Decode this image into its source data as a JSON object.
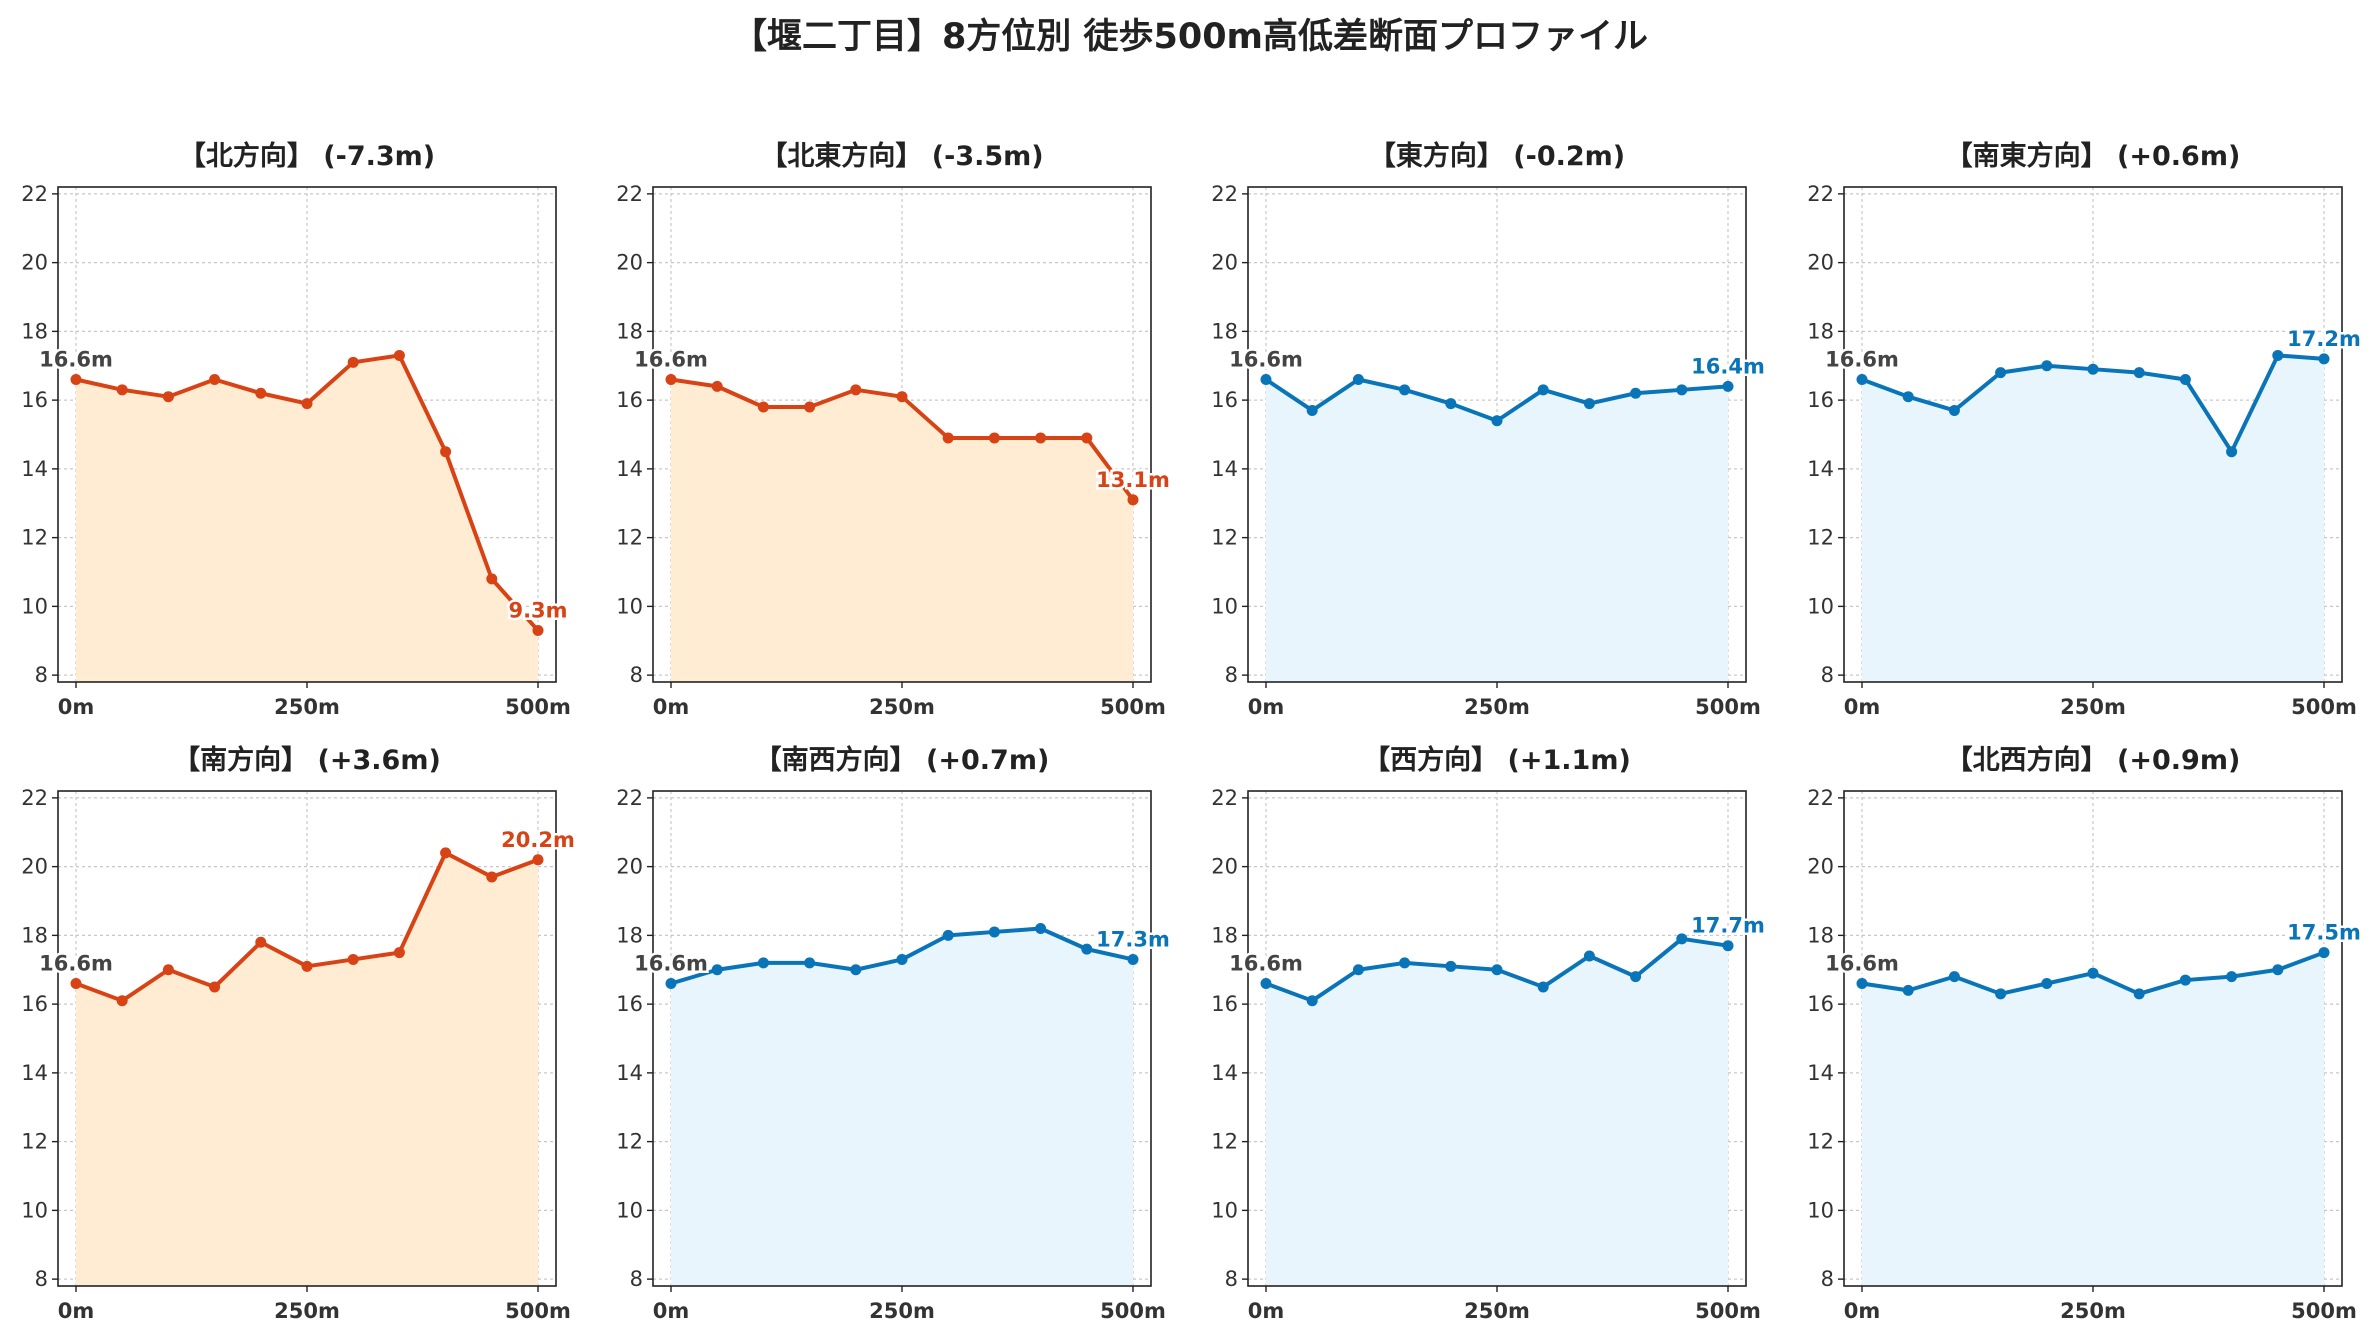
{
  "title": "【堰二丁目】8方位別 徒歩500m高低差断面プロファイル",
  "colors": {
    "down_line": "#d84315",
    "down_fill": "#ffecd2",
    "up_line": "#0a74b9",
    "up_fill": "#e8f5fc",
    "start_label": "#444444"
  },
  "chart_data": [
    {
      "type": "area",
      "title": "【北方向】 (-7.3m)",
      "style": "orange",
      "x": [
        0,
        50,
        100,
        150,
        200,
        250,
        300,
        350,
        400,
        450,
        500
      ],
      "values": [
        16.6,
        16.3,
        16.1,
        16.6,
        16.2,
        15.9,
        17.1,
        17.3,
        14.5,
        10.8,
        9.3
      ],
      "start_label": "16.6m",
      "end_label": "9.3m",
      "ylim": [
        7.8,
        22.2
      ],
      "yticks": [
        8,
        10,
        12,
        14,
        16,
        18,
        20,
        22
      ],
      "xticks": [
        0,
        250,
        500
      ],
      "xtick_labels": [
        "0m",
        "250m",
        "500m"
      ],
      "grid": true
    },
    {
      "type": "area",
      "title": "【北東方向】 (-3.5m)",
      "style": "orange",
      "x": [
        0,
        50,
        100,
        150,
        200,
        250,
        300,
        350,
        400,
        450,
        500
      ],
      "values": [
        16.6,
        16.4,
        15.8,
        15.8,
        16.3,
        16.1,
        14.9,
        14.9,
        14.9,
        14.9,
        13.1
      ],
      "start_label": "16.6m",
      "end_label": "13.1m",
      "ylim": [
        7.8,
        22.2
      ],
      "yticks": [
        8,
        10,
        12,
        14,
        16,
        18,
        20,
        22
      ],
      "xticks": [
        0,
        250,
        500
      ],
      "xtick_labels": [
        "0m",
        "250m",
        "500m"
      ],
      "grid": true
    },
    {
      "type": "area",
      "title": "【東方向】 (-0.2m)",
      "style": "blue",
      "x": [
        0,
        50,
        100,
        150,
        200,
        250,
        300,
        350,
        400,
        450,
        500
      ],
      "values": [
        16.6,
        15.7,
        16.6,
        16.3,
        15.9,
        15.4,
        16.3,
        15.9,
        16.2,
        16.3,
        16.4
      ],
      "start_label": "16.6m",
      "end_label": "16.4m",
      "ylim": [
        7.8,
        22.2
      ],
      "yticks": [
        8,
        10,
        12,
        14,
        16,
        18,
        20,
        22
      ],
      "xticks": [
        0,
        250,
        500
      ],
      "xtick_labels": [
        "0m",
        "250m",
        "500m"
      ],
      "grid": true
    },
    {
      "type": "area",
      "title": "【南東方向】 (+0.6m)",
      "style": "blue",
      "x": [
        0,
        50,
        100,
        150,
        200,
        250,
        300,
        350,
        400,
        450,
        500
      ],
      "values": [
        16.6,
        16.1,
        15.7,
        16.8,
        17.0,
        16.9,
        16.8,
        16.6,
        14.5,
        17.3,
        17.2
      ],
      "start_label": "16.6m",
      "end_label": "17.2m",
      "ylim": [
        7.8,
        22.2
      ],
      "yticks": [
        8,
        10,
        12,
        14,
        16,
        18,
        20,
        22
      ],
      "xticks": [
        0,
        250,
        500
      ],
      "xtick_labels": [
        "0m",
        "250m",
        "500m"
      ],
      "grid": true
    },
    {
      "type": "area",
      "title": "【南方向】 (+3.6m)",
      "style": "orange",
      "x": [
        0,
        50,
        100,
        150,
        200,
        250,
        300,
        350,
        400,
        450,
        500
      ],
      "values": [
        16.6,
        16.1,
        17.0,
        16.5,
        17.8,
        17.1,
        17.3,
        17.5,
        20.4,
        19.7,
        20.2
      ],
      "start_label": "16.6m",
      "end_label": "20.2m",
      "ylim": [
        7.8,
        22.2
      ],
      "yticks": [
        8,
        10,
        12,
        14,
        16,
        18,
        20,
        22
      ],
      "xticks": [
        0,
        250,
        500
      ],
      "xtick_labels": [
        "0m",
        "250m",
        "500m"
      ],
      "grid": true
    },
    {
      "type": "area",
      "title": "【南西方向】 (+0.7m)",
      "style": "blue",
      "x": [
        0,
        50,
        100,
        150,
        200,
        250,
        300,
        350,
        400,
        450,
        500
      ],
      "values": [
        16.6,
        17.0,
        17.2,
        17.2,
        17.0,
        17.3,
        18.0,
        18.1,
        18.2,
        17.6,
        17.3
      ],
      "start_label": "16.6m",
      "end_label": "17.3m",
      "ylim": [
        7.8,
        22.2
      ],
      "yticks": [
        8,
        10,
        12,
        14,
        16,
        18,
        20,
        22
      ],
      "xticks": [
        0,
        250,
        500
      ],
      "xtick_labels": [
        "0m",
        "250m",
        "500m"
      ],
      "grid": true
    },
    {
      "type": "area",
      "title": "【西方向】 (+1.1m)",
      "style": "blue",
      "x": [
        0,
        50,
        100,
        150,
        200,
        250,
        300,
        350,
        400,
        450,
        500
      ],
      "values": [
        16.6,
        16.1,
        17.0,
        17.2,
        17.1,
        17.0,
        16.5,
        17.4,
        16.8,
        17.9,
        17.7
      ],
      "start_label": "16.6m",
      "end_label": "17.7m",
      "ylim": [
        7.8,
        22.2
      ],
      "yticks": [
        8,
        10,
        12,
        14,
        16,
        18,
        20,
        22
      ],
      "xticks": [
        0,
        250,
        500
      ],
      "xtick_labels": [
        "0m",
        "250m",
        "500m"
      ],
      "grid": true
    },
    {
      "type": "area",
      "title": "【北西方向】 (+0.9m)",
      "style": "blue",
      "x": [
        0,
        50,
        100,
        150,
        200,
        250,
        300,
        350,
        400,
        450,
        500
      ],
      "values": [
        16.6,
        16.4,
        16.8,
        16.3,
        16.6,
        16.9,
        16.3,
        16.7,
        16.8,
        17.0,
        17.5
      ],
      "start_label": "16.6m",
      "end_label": "17.5m",
      "ylim": [
        7.8,
        22.2
      ],
      "yticks": [
        8,
        10,
        12,
        14,
        16,
        18,
        20,
        22
      ],
      "xticks": [
        0,
        250,
        500
      ],
      "xtick_labels": [
        "0m",
        "250m",
        "500m"
      ],
      "grid": true
    }
  ]
}
